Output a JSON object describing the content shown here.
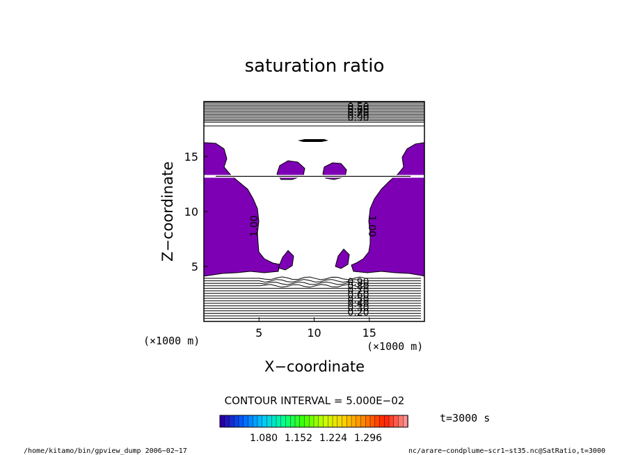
{
  "chart_data": {
    "type": "contour",
    "title": "saturation ratio",
    "xlabel": "X−coordinate",
    "ylabel": "Z−coordinate",
    "x_unit": "(×1000 m)",
    "y_unit": "(×1000 m)",
    "xlim": [
      0,
      20
    ],
    "ylim": [
      0,
      20
    ],
    "x_ticks": [
      "5",
      "10",
      "15"
    ],
    "y_ticks": [
      "5",
      "10",
      "15"
    ],
    "contour_interval_text": "CONTOUR INTERVAL = 5.000E−02",
    "contour_labels_top": [
      "0.50",
      "0.60",
      "0.70",
      "0.80",
      "0.90"
    ],
    "contour_labels_bottom": [
      "0.90",
      "0.80",
      "0.70",
      "0.60",
      "0.50",
      "0.40",
      "0.30",
      "0.20"
    ],
    "contour_labels_side": [
      "1.00",
      "1.00"
    ],
    "colorbar": {
      "ticks": [
        "1.080",
        "1.152",
        "1.224",
        "1.296"
      ],
      "colors": [
        "#2a00a8",
        "#0060ff",
        "#00c8ff",
        "#00ff90",
        "#40ff00",
        "#c8ff00",
        "#ffd000",
        "#ff8000",
        "#ff2000",
        "#ff9090"
      ]
    },
    "fill_color": "#7d00b4",
    "time_label": "t=3000 s",
    "footer_left": "/home/kitamo/bin/gpview_dump  2006−02−17",
    "footer_right": "nc/arare−condplume−scr1−st35.nc@SatRatio,t=3000"
  }
}
